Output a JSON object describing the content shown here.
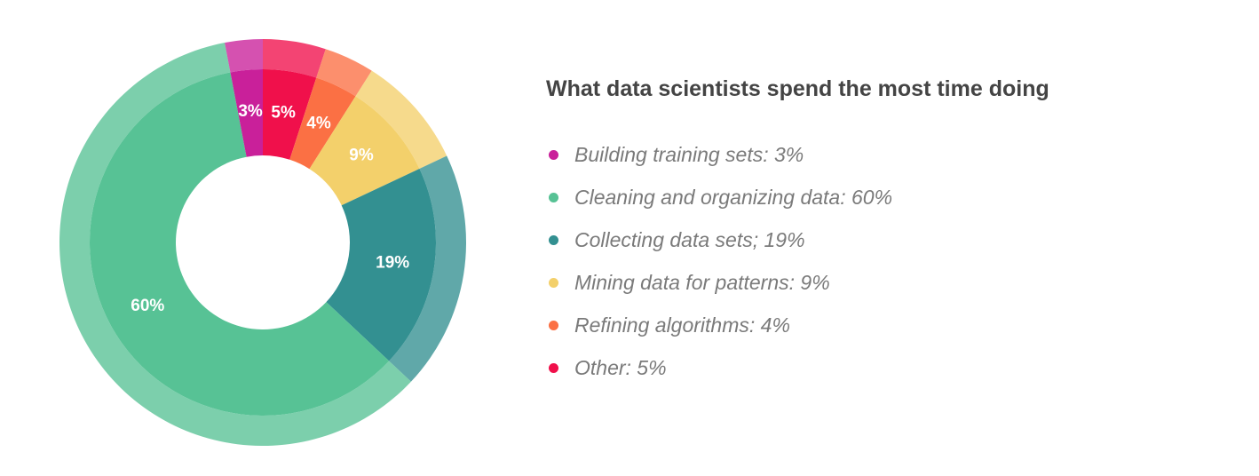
{
  "chart_data": {
    "type": "pie",
    "title": "What data scientists spend the most time doing",
    "categories": [
      "Building training sets",
      "Cleaning and organizing data",
      "Collecting data sets",
      "Mining data for patterns",
      "Refining algorithms",
      "Other"
    ],
    "values": [
      3,
      60,
      19,
      9,
      4,
      5
    ],
    "slice_labels": [
      "3%",
      "60%",
      "19%",
      "9%",
      "4%",
      "5%"
    ],
    "colors": [
      "#c9209a",
      "#57c295",
      "#339091",
      "#f3d06b",
      "#fb7044",
      "#f0104b"
    ],
    "legend_placement": "right",
    "style": "donut"
  },
  "legend": {
    "items": [
      {
        "label": "Building training sets: 3%",
        "color": "#c9209a"
      },
      {
        "label": "Cleaning and organizing data: 60%",
        "color": "#57c295"
      },
      {
        "label": "Collecting data sets; 19%",
        "color": "#339091"
      },
      {
        "label": "Mining data for patterns: 9%",
        "color": "#f3d06b"
      },
      {
        "label": "Refining algorithms: 4%",
        "color": "#fb7044"
      },
      {
        "label": "Other: 5%",
        "color": "#f0104b"
      }
    ]
  }
}
